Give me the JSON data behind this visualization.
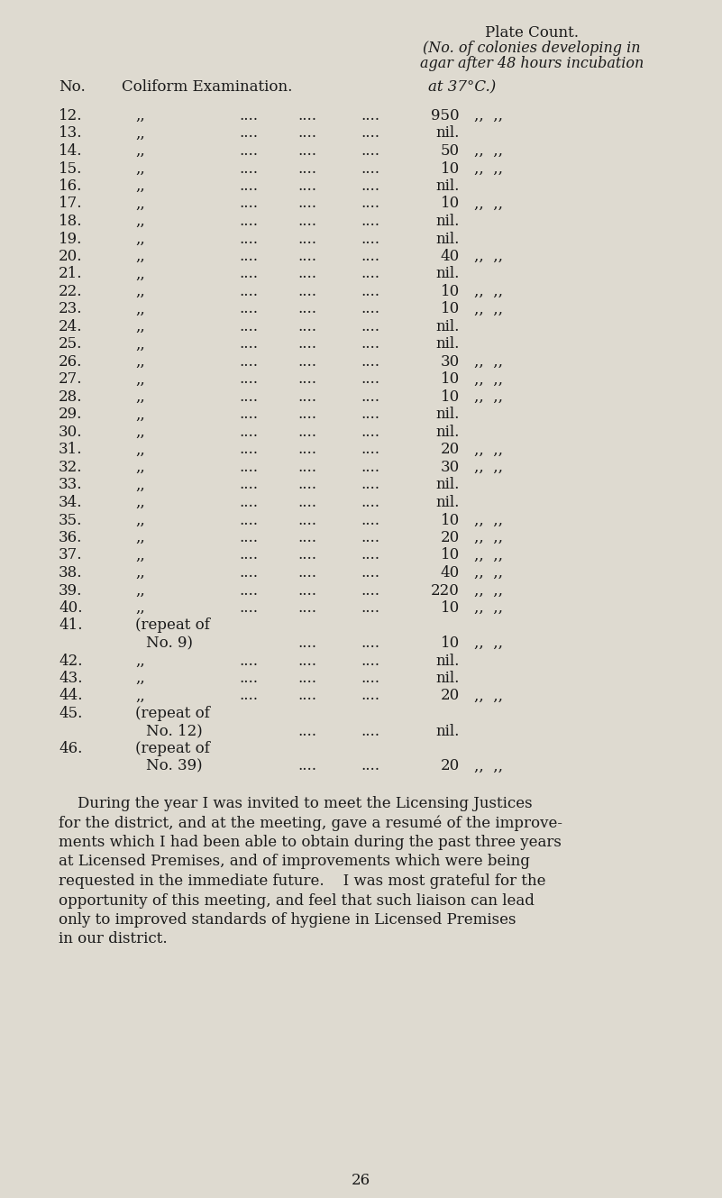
{
  "bg_color": "#dedad0",
  "text_color": "#1a1a1a",
  "page_width": 8.01,
  "page_height": 13.29,
  "header_title": "Plate Count.",
  "header_sub1": "(No. of colonies developing in",
  "header_sub2": "agar after 48 hours incubation",
  "header_col1": "No.",
  "header_col2": "Coliform Examination.",
  "header_col3": "at 37°C.)",
  "rows": [
    {
      "num": "12.",
      "label": ",,",
      "dots": "....    .....    ....",
      "value": "950",
      "suffix": ",,  ,,"
    },
    {
      "num": "13.",
      "label": ",,",
      "dots": "....    .....    ....",
      "value": "nil.",
      "suffix": ""
    },
    {
      "num": "14.",
      "label": ",,",
      "dots": "....    .....    ....",
      "value": "50",
      "suffix": ",,  ,,"
    },
    {
      "num": "15.",
      "label": ",,",
      "dots": "....    .....    ....",
      "value": "10",
      "suffix": ",,  ,,"
    },
    {
      "num": "16.",
      "label": ",,",
      "dots": "....    .....    ....",
      "value": "nil.",
      "suffix": ""
    },
    {
      "num": "17.",
      "label": ",,",
      "dots": "....    .....    ....",
      "value": "10",
      "suffix": ",,  ,,"
    },
    {
      "num": "18.",
      "label": ",,",
      "dots": "....    .....    ....",
      "value": "nil.",
      "suffix": ""
    },
    {
      "num": "19.",
      "label": ",,",
      "dots": "....    .....    ....",
      "value": "nil.",
      "suffix": ""
    },
    {
      "num": "20.",
      "label": ",,",
      "dots": "....    .....    ....",
      "value": "40",
      "suffix": ",,  ,,"
    },
    {
      "num": "21.",
      "label": ",,",
      "dots": "....    .....    ....",
      "value": "nil.",
      "suffix": ""
    },
    {
      "num": "22.",
      "label": ",,",
      "dots": "....    .....    ....",
      "value": "10",
      "suffix": ",,  ,,"
    },
    {
      "num": "23.",
      "label": ",,",
      "dots": "....    .....    ....",
      "value": "10",
      "suffix": ",,  ,,"
    },
    {
      "num": "24.",
      "label": ",,",
      "dots": "....    .....    ....",
      "value": "nil.",
      "suffix": ""
    },
    {
      "num": "25.",
      "label": ",,",
      "dots": "....    .....    ....",
      "value": "nil.",
      "suffix": ""
    },
    {
      "num": "26.",
      "label": ",,",
      "dots": "....    .....    ....",
      "value": "30",
      "suffix": ",,  ,,"
    },
    {
      "num": "27.",
      "label": ",,",
      "dots": "....    .....    ....",
      "value": "10",
      "suffix": ",,  ,,"
    },
    {
      "num": "28.",
      "label": ",,",
      "dots": "....    .....    ....",
      "value": "10",
      "suffix": ",,  ,,"
    },
    {
      "num": "29.",
      "label": ",,",
      "dots": "....    .....    ....",
      "value": "nil.",
      "suffix": ""
    },
    {
      "num": "30.",
      "label": ",,",
      "dots": "....    .....    ....",
      "value": "nil.",
      "suffix": ""
    },
    {
      "num": "31.",
      "label": ",,",
      "dots": "....    .....    ....",
      "value": "20",
      "suffix": ",,  ,,"
    },
    {
      "num": "32.",
      "label": ",,",
      "dots": "....    .....    ....",
      "value": "30",
      "suffix": ",,  ,,"
    },
    {
      "num": "33.",
      "label": ",,",
      "dots": "....    .....    ....",
      "value": "nil.",
      "suffix": ""
    },
    {
      "num": "34.",
      "label": ",,",
      "dots": "....    .....    ....",
      "value": "nil.",
      "suffix": ""
    },
    {
      "num": "35.",
      "label": ",,",
      "dots": "....    .....    ....",
      "value": "10",
      "suffix": ",,  ,,"
    },
    {
      "num": "36.",
      "label": ",,",
      "dots": "....    .....    ....",
      "value": "20",
      "suffix": ",,  ,,"
    },
    {
      "num": "37.",
      "label": ",,",
      "dots": "....    .....    ....",
      "value": "10",
      "suffix": ",,  ,,"
    },
    {
      "num": "38.",
      "label": ",,",
      "dots": "....    .....    ....",
      "value": "40",
      "suffix": ",,  ,,"
    },
    {
      "num": "39.",
      "label": ",,",
      "dots": "....    .....    ....",
      "value": "220",
      "suffix": ",,  ,,"
    },
    {
      "num": "40.",
      "label": ",,",
      "dots": "....    .....    ....",
      "value": "10",
      "suffix": ",,  ,,"
    },
    {
      "num": "41.",
      "label": "(repeat of",
      "label2": "No. 9)",
      "dots": ".....    ....",
      "value": "10",
      "suffix": ",,  ,,"
    },
    {
      "num": "42.",
      "label": ",,",
      "dots": "....    .....    ....",
      "value": "nil.",
      "suffix": ""
    },
    {
      "num": "43.",
      "label": ",,",
      "dots": "....    .....    ....",
      "value": "nil.",
      "suffix": ""
    },
    {
      "num": "44.",
      "label": ",,",
      "dots": "....    .....    ....",
      "value": "20",
      "suffix": ",,  ,,"
    },
    {
      "num": "45.",
      "label": "(repeat of",
      "label2": "No. 12)",
      "dots": ".....    ....",
      "value": "nil.",
      "suffix": ""
    },
    {
      "num": "46.",
      "label": "(repeat of",
      "label2": "No. 39)",
      "dots": ".....    ....",
      "value": "20",
      "suffix": ",,  ,,"
    }
  ],
  "para_line1": "    During the year I was invited to meet the Licensing Justices",
  "para_line2": "for the district, and at the meeting, gave a resumé of the improve-",
  "para_line3": "ments which I had been able to obtain during the past three years",
  "para_line4": "at Licensed Premises, and of improvements which were being",
  "para_line5": "requested in the immediate future.    I was most grateful for the",
  "para_line6": "opportunity of this meeting, and feel that such liaison can lead",
  "para_line7": "only to improved standards of hygiene in Licensed Premises",
  "para_line8": "in our district.",
  "page_number": "26",
  "fs": 12.0,
  "fs_header": 12.0,
  "fs_italic": 11.5
}
